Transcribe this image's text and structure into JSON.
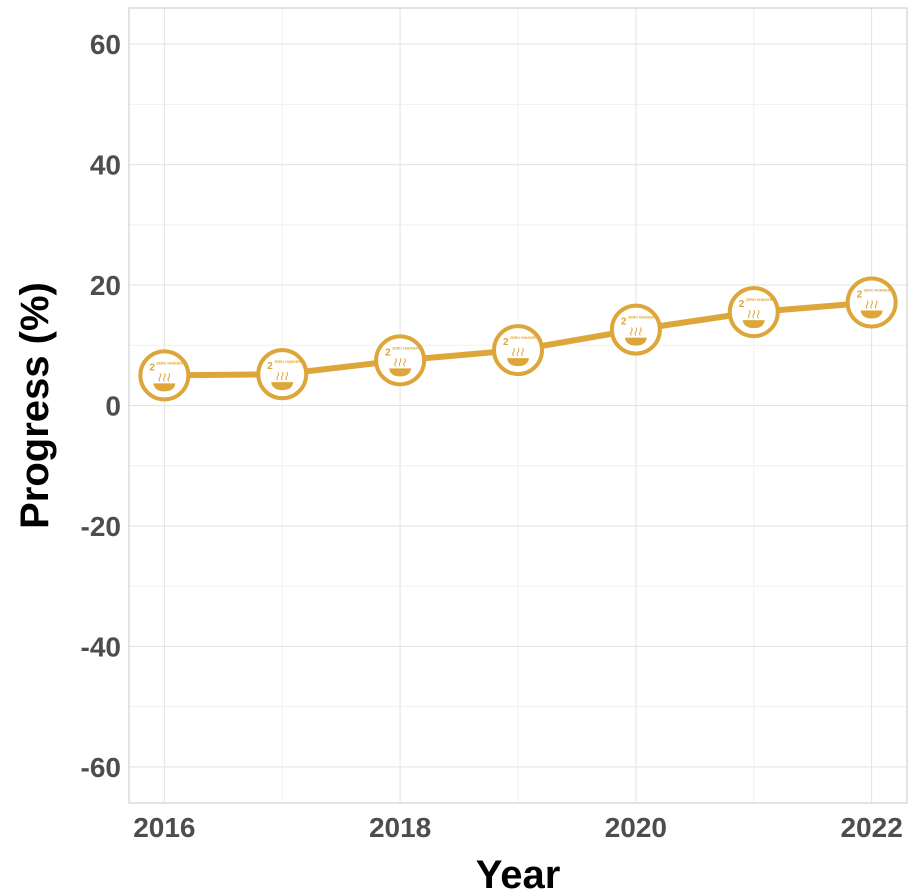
{
  "chart_data": {
    "type": "line",
    "title": "",
    "xlabel": "Year",
    "ylabel": "Progress (%)",
    "xlim": [
      2015.7,
      2022.3
    ],
    "ylim": [
      -66,
      66
    ],
    "x_ticks": [
      2016,
      2018,
      2020,
      2022
    ],
    "y_ticks": [
      -60,
      -40,
      -20,
      0,
      20,
      40,
      60
    ],
    "grid": true,
    "legend": "none",
    "series": [
      {
        "x": [
          2016,
          2017,
          2018,
          2019,
          2020,
          2021,
          2022
        ],
        "values": [
          5.0,
          5.2,
          7.5,
          9.2,
          12.6,
          15.5,
          17.1
        ],
        "color": "#dda63a",
        "marker": "sdg-2-zero-hunger-icon"
      }
    ],
    "marker_icon": {
      "number": "2",
      "caption_line1": "ZERO HUNGER",
      "caption_line2": "",
      "color": "#dda63a"
    }
  }
}
